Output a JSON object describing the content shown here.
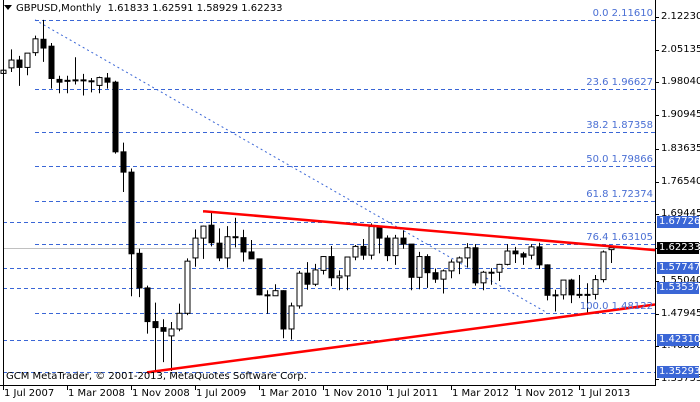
{
  "header": {
    "symbol_timeframe": "GBPUSD,Monthly",
    "ohlc": "1.61833 1.62591 1.58929 1.62233"
  },
  "footer": {
    "copyright": "GCM MetaTrader, © 2001-2013, MetaQuotes Software Corp."
  },
  "colors": {
    "fib_line": "#3a66d6",
    "trendline": "#ff0000",
    "bid_line": "#c0c0c0",
    "price_tag_bg": "#3a66d6",
    "current_price_bg": "#000000",
    "candle_bull_fill": "#ffffff",
    "candle_bear_fill": "#000000"
  },
  "chart_data": {
    "type": "candlestick",
    "title": "GBPUSD,Monthly",
    "ohlc_last": {
      "open": 1.61833,
      "high": 1.62591,
      "low": 1.58929,
      "close": 1.62233
    },
    "xlabel": "",
    "ylabel": "",
    "ylim": [
      1.3285,
      2.1317
    ],
    "grid": false,
    "x_ticks": [
      "1 Jul 2007",
      "1 Mar 2008",
      "1 Nov 2008",
      "1 Jul 2009",
      "1 Mar 2010",
      "1 Nov 2010",
      "1 Jul 2011",
      "1 Mar 2012",
      "1 Nov 2012",
      "1 Jul 2013"
    ],
    "y_ticks": [
      "2.12230",
      "2.05135",
      "1.98040",
      "1.90945",
      "1.83635",
      "1.76540",
      "1.69445",
      "1.62233",
      "1.55040",
      "1.47945",
      "1.40850",
      "1.33755"
    ],
    "price_tags": [
      {
        "value": "1.67726",
        "kind": "level"
      },
      {
        "value": "1.62233",
        "kind": "current"
      },
      {
        "value": "1.57747",
        "kind": "level"
      },
      {
        "value": "1.53537",
        "kind": "level"
      },
      {
        "value": "1.42310",
        "kind": "level"
      },
      {
        "value": "1.35293",
        "kind": "level"
      }
    ],
    "fibonacci": [
      {
        "level": "0.0",
        "price": "2.11610"
      },
      {
        "level": "23.6",
        "price": "1.96627"
      },
      {
        "level": "38.2",
        "price": "1.87358"
      },
      {
        "level": "50.0",
        "price": "1.79866"
      },
      {
        "level": "61.8",
        "price": "1.72374"
      },
      {
        "level": "76.4",
        "price": "1.63105"
      },
      {
        "level": "100.0",
        "price": "1.48122"
      }
    ],
    "horizontal_levels": [
      "1.67726",
      "1.57747",
      "1.53537",
      "1.42310",
      "1.35293"
    ],
    "trendlines": [
      {
        "name": "upper-triangle-line",
        "from": {
          "date": "Jul 2009",
          "price": 1.701
        },
        "to": {
          "date": "Oct 2013",
          "price": 1.617
        }
      },
      {
        "name": "lower-triangle-line",
        "from": {
          "date": "Jan 2009",
          "price": 1.352
        },
        "to": {
          "date": "Oct 2013",
          "price": 1.499
        }
      },
      {
        "name": "fib-diagonal",
        "from": {
          "date": "Nov 2007",
          "price": 2.1161
        },
        "to": {
          "date": "Jul 2013",
          "price": 1.4812
        }
      }
    ],
    "series": [
      {
        "date": "2007-06",
        "o": 2.0,
        "h": 2.009,
        "l": 1.975,
        "c": 2.007
      },
      {
        "date": "2007-07",
        "o": 2.012,
        "h": 2.052,
        "l": 2.003,
        "c": 2.029
      },
      {
        "date": "2007-08",
        "o": 2.029,
        "h": 2.038,
        "l": 1.973,
        "c": 2.013
      },
      {
        "date": "2007-09",
        "o": 2.013,
        "h": 2.04,
        "l": 1.996,
        "c": 2.044
      },
      {
        "date": "2007-10",
        "o": 2.045,
        "h": 2.082,
        "l": 2.038,
        "c": 2.075
      },
      {
        "date": "2007-11",
        "o": 2.074,
        "h": 2.116,
        "l": 2.025,
        "c": 2.055
      },
      {
        "date": "2007-12",
        "o": 2.059,
        "h": 2.066,
        "l": 1.967,
        "c": 1.989
      },
      {
        "date": "2008-01",
        "o": 1.987,
        "h": 1.995,
        "l": 1.957,
        "c": 1.981
      },
      {
        "date": "2008-02",
        "o": 1.984,
        "h": 1.995,
        "l": 1.957,
        "c": 1.985
      },
      {
        "date": "2008-03",
        "o": 1.986,
        "h": 2.035,
        "l": 1.976,
        "c": 1.984
      },
      {
        "date": "2008-04",
        "o": 1.984,
        "h": 1.999,
        "l": 1.952,
        "c": 1.986
      },
      {
        "date": "2008-05",
        "o": 1.984,
        "h": 1.99,
        "l": 1.959,
        "c": 1.982
      },
      {
        "date": "2008-06",
        "o": 1.974,
        "h": 1.993,
        "l": 1.957,
        "c": 1.991
      },
      {
        "date": "2008-07",
        "o": 1.99,
        "h": 2.001,
        "l": 1.967,
        "c": 1.981
      },
      {
        "date": "2008-08",
        "o": 1.981,
        "h": 1.984,
        "l": 1.826,
        "c": 1.83
      },
      {
        "date": "2008-09",
        "o": 1.83,
        "h": 1.85,
        "l": 1.743,
        "c": 1.786
      },
      {
        "date": "2008-10",
        "o": 1.786,
        "h": 1.794,
        "l": 1.517,
        "c": 1.609
      },
      {
        "date": "2008-11",
        "o": 1.61,
        "h": 1.62,
        "l": 1.515,
        "c": 1.535
      },
      {
        "date": "2008-12",
        "o": 1.535,
        "h": 1.54,
        "l": 1.436,
        "c": 1.462
      },
      {
        "date": "2009-01",
        "o": 1.462,
        "h": 1.503,
        "l": 1.352,
        "c": 1.449
      },
      {
        "date": "2009-02",
        "o": 1.449,
        "h": 1.467,
        "l": 1.374,
        "c": 1.441
      },
      {
        "date": "2009-03",
        "o": 1.431,
        "h": 1.461,
        "l": 1.355,
        "c": 1.446
      },
      {
        "date": "2009-04",
        "o": 1.446,
        "h": 1.501,
        "l": 1.441,
        "c": 1.48
      },
      {
        "date": "2009-05",
        "o": 1.48,
        "h": 1.599,
        "l": 1.476,
        "c": 1.593
      },
      {
        "date": "2009-06",
        "o": 1.6,
        "h": 1.662,
        "l": 1.581,
        "c": 1.643
      },
      {
        "date": "2009-07",
        "o": 1.643,
        "h": 1.67,
        "l": 1.598,
        "c": 1.669
      },
      {
        "date": "2009-08",
        "o": 1.671,
        "h": 1.701,
        "l": 1.625,
        "c": 1.633
      },
      {
        "date": "2009-09",
        "o": 1.632,
        "h": 1.664,
        "l": 1.593,
        "c": 1.6
      },
      {
        "date": "2009-10",
        "o": 1.6,
        "h": 1.669,
        "l": 1.579,
        "c": 1.646
      },
      {
        "date": "2009-11",
        "o": 1.646,
        "h": 1.687,
        "l": 1.623,
        "c": 1.644
      },
      {
        "date": "2009-12",
        "o": 1.644,
        "h": 1.661,
        "l": 1.592,
        "c": 1.613
      },
      {
        "date": "2010-01",
        "o": 1.613,
        "h": 1.639,
        "l": 1.599,
        "c": 1.598
      },
      {
        "date": "2010-02",
        "o": 1.598,
        "h": 1.598,
        "l": 1.519,
        "c": 1.52
      },
      {
        "date": "2010-03",
        "o": 1.52,
        "h": 1.53,
        "l": 1.479,
        "c": 1.52
      },
      {
        "date": "2010-04",
        "o": 1.518,
        "h": 1.543,
        "l": 1.526,
        "c": 1.529
      },
      {
        "date": "2010-05",
        "o": 1.529,
        "h": 1.53,
        "l": 1.426,
        "c": 1.446
      },
      {
        "date": "2010-06",
        "o": 1.446,
        "h": 1.503,
        "l": 1.423,
        "c": 1.496
      },
      {
        "date": "2010-07",
        "o": 1.496,
        "h": 1.572,
        "l": 1.49,
        "c": 1.567
      },
      {
        "date": "2010-08",
        "o": 1.567,
        "h": 1.591,
        "l": 1.531,
        "c": 1.543
      },
      {
        "date": "2010-09",
        "o": 1.543,
        "h": 1.587,
        "l": 1.539,
        "c": 1.574
      },
      {
        "date": "2010-10",
        "o": 1.573,
        "h": 1.604,
        "l": 1.564,
        "c": 1.603
      },
      {
        "date": "2010-11",
        "o": 1.603,
        "h": 1.626,
        "l": 1.539,
        "c": 1.557
      },
      {
        "date": "2010-12",
        "o": 1.557,
        "h": 1.573,
        "l": 1.53,
        "c": 1.561
      },
      {
        "date": "2011-01",
        "o": 1.561,
        "h": 1.602,
        "l": 1.53,
        "c": 1.602
      },
      {
        "date": "2011-02",
        "o": 1.602,
        "h": 1.628,
        "l": 1.595,
        "c": 1.625
      },
      {
        "date": "2011-03",
        "o": 1.625,
        "h": 1.641,
        "l": 1.596,
        "c": 1.606
      },
      {
        "date": "2011-04",
        "o": 1.606,
        "h": 1.675,
        "l": 1.597,
        "c": 1.668
      },
      {
        "date": "2011-05",
        "o": 1.668,
        "h": 1.67,
        "l": 1.61,
        "c": 1.643
      },
      {
        "date": "2011-06",
        "o": 1.643,
        "h": 1.649,
        "l": 1.593,
        "c": 1.605
      },
      {
        "date": "2011-07",
        "o": 1.605,
        "h": 1.65,
        "l": 1.585,
        "c": 1.643
      },
      {
        "date": "2011-08",
        "o": 1.643,
        "h": 1.66,
        "l": 1.62,
        "c": 1.63
      },
      {
        "date": "2011-09",
        "o": 1.63,
        "h": 1.63,
        "l": 1.53,
        "c": 1.558
      },
      {
        "date": "2011-10",
        "o": 1.558,
        "h": 1.613,
        "l": 1.532,
        "c": 1.603
      },
      {
        "date": "2011-11",
        "o": 1.603,
        "h": 1.608,
        "l": 1.535,
        "c": 1.568
      },
      {
        "date": "2011-12",
        "o": 1.568,
        "h": 1.577,
        "l": 1.546,
        "c": 1.554
      },
      {
        "date": "2012-01",
        "o": 1.554,
        "h": 1.575,
        "l": 1.523,
        "c": 1.572
      },
      {
        "date": "2012-02",
        "o": 1.572,
        "h": 1.597,
        "l": 1.556,
        "c": 1.591
      },
      {
        "date": "2012-03",
        "o": 1.591,
        "h": 1.603,
        "l": 1.565,
        "c": 1.6
      },
      {
        "date": "2012-04",
        "o": 1.6,
        "h": 1.632,
        "l": 1.579,
        "c": 1.622
      },
      {
        "date": "2012-05",
        "o": 1.622,
        "h": 1.63,
        "l": 1.54,
        "c": 1.546
      },
      {
        "date": "2012-06",
        "o": 1.546,
        "h": 1.572,
        "l": 1.53,
        "c": 1.569
      },
      {
        "date": "2012-07",
        "o": 1.569,
        "h": 1.578,
        "l": 1.542,
        "c": 1.569
      },
      {
        "date": "2012-08",
        "o": 1.569,
        "h": 1.587,
        "l": 1.55,
        "c": 1.586
      },
      {
        "date": "2012-09",
        "o": 1.586,
        "h": 1.63,
        "l": 1.584,
        "c": 1.615
      },
      {
        "date": "2012-10",
        "o": 1.615,
        "h": 1.624,
        "l": 1.589,
        "c": 1.609
      },
      {
        "date": "2012-11",
        "o": 1.609,
        "h": 1.613,
        "l": 1.585,
        "c": 1.602
      },
      {
        "date": "2012-12",
        "o": 1.606,
        "h": 1.63,
        "l": 1.597,
        "c": 1.624
      },
      {
        "date": "2013-01",
        "o": 1.624,
        "h": 1.633,
        "l": 1.576,
        "c": 1.585
      },
      {
        "date": "2013-02",
        "o": 1.585,
        "h": 1.586,
        "l": 1.508,
        "c": 1.519
      },
      {
        "date": "2013-03",
        "o": 1.519,
        "h": 1.531,
        "l": 1.484,
        "c": 1.52
      },
      {
        "date": "2013-04",
        "o": 1.52,
        "h": 1.55,
        "l": 1.51,
        "c": 1.552
      },
      {
        "date": "2013-05",
        "o": 1.552,
        "h": 1.555,
        "l": 1.502,
        "c": 1.52
      },
      {
        "date": "2013-06",
        "o": 1.52,
        "h": 1.563,
        "l": 1.513,
        "c": 1.521
      },
      {
        "date": "2013-07",
        "o": 1.521,
        "h": 1.545,
        "l": 1.481,
        "c": 1.521
      },
      {
        "date": "2013-08",
        "o": 1.521,
        "h": 1.563,
        "l": 1.51,
        "c": 1.553
      },
      {
        "date": "2013-09",
        "o": 1.553,
        "h": 1.616,
        "l": 1.547,
        "c": 1.613
      },
      {
        "date": "2013-10",
        "o": 1.618,
        "h": 1.626,
        "l": 1.589,
        "c": 1.622
      }
    ]
  }
}
